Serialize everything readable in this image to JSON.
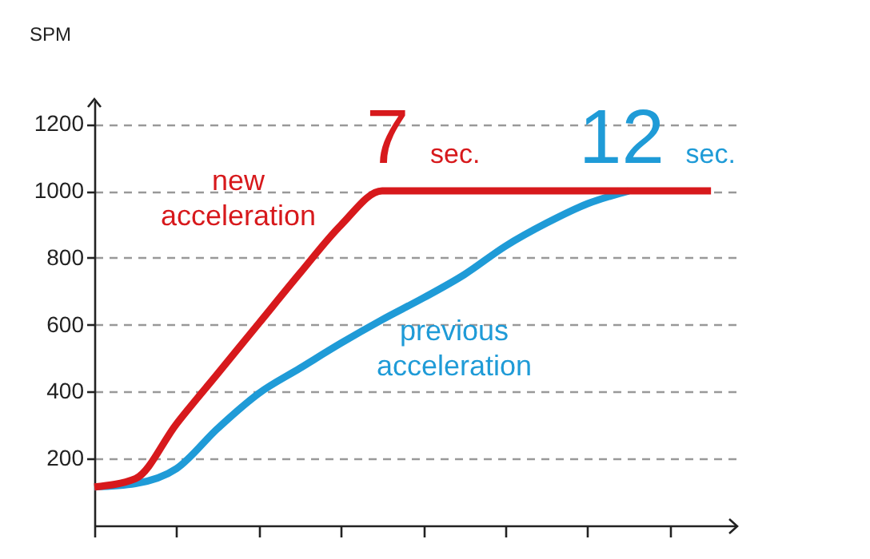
{
  "chart_data": {
    "type": "line",
    "ylabel": "SPM",
    "categories": [
      null,
      null,
      null,
      null,
      null,
      null,
      null,
      null,
      null,
      null,
      null,
      null,
      null,
      null,
      null,
      null
    ],
    "series": [
      {
        "name": "new acceleration",
        "color": "#d7191c",
        "values": [
          115,
          140,
          304,
          454,
          604,
          754,
          898,
          1000,
          1000,
          1000,
          1000,
          1000,
          1000,
          1000,
          1000,
          1000
        ]
      },
      {
        "name": "previous acceleration",
        "color": "#1f9bd7",
        "values": [
          115,
          125,
          170,
          290,
          395,
          470,
          545,
          615,
          680,
          750,
          835,
          904,
          962,
          1000,
          null,
          null
        ]
      }
    ],
    "ylim": [
      0,
      1270
    ],
    "yticks": [
      200,
      400,
      600,
      800,
      1000,
      1200
    ],
    "grid": "y",
    "line_style": "solid",
    "marker": "none",
    "annotations": [
      "7 sec.",
      "12 sec."
    ]
  }
}
